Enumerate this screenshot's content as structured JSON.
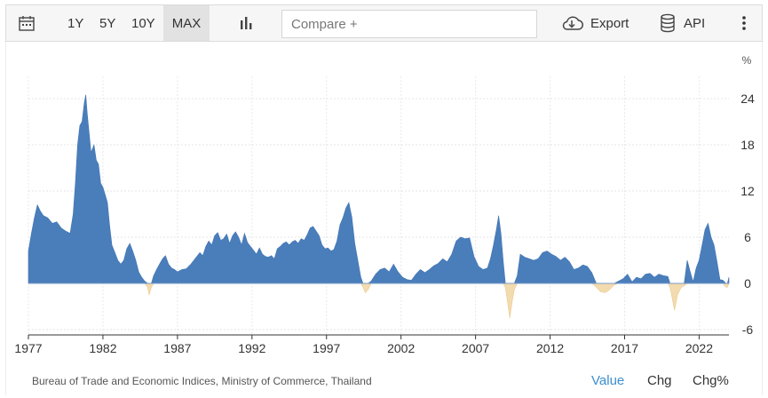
{
  "toolbar": {
    "ranges": [
      "1Y",
      "5Y",
      "10Y",
      "MAX"
    ],
    "active_range": "MAX",
    "compare_placeholder": "Compare +",
    "export_label": "Export",
    "api_label": "API",
    "icons": [
      "calendar-icon",
      "bar-chart-icon",
      "cloud-download-icon",
      "database-icon",
      "more-vertical-icon"
    ]
  },
  "chart_data": {
    "type": "area",
    "ylabel": "%",
    "y_ticks": [
      24,
      18,
      12,
      6,
      0,
      -6
    ],
    "ylim": [
      -7,
      27
    ],
    "x_ticks": [
      "1977",
      "1982",
      "1987",
      "1992",
      "1997",
      "2002",
      "2007",
      "2012",
      "2017",
      "2022"
    ],
    "xlim": [
      1977.0,
      2024.0
    ],
    "grid": true,
    "positive_color": "#4a7ebb",
    "negative_color": "#f3dbb0",
    "series": [
      {
        "points": [
          [
            1977.0,
            4.2
          ],
          [
            1977.2,
            6.5
          ],
          [
            1977.4,
            8.5
          ],
          [
            1977.6,
            10.2
          ],
          [
            1977.8,
            9.4
          ],
          [
            1978.0,
            8.8
          ],
          [
            1978.3,
            8.5
          ],
          [
            1978.6,
            7.8
          ],
          [
            1978.9,
            8.0
          ],
          [
            1979.2,
            7.2
          ],
          [
            1979.5,
            6.8
          ],
          [
            1979.8,
            6.5
          ],
          [
            1980.0,
            9.0
          ],
          [
            1980.15,
            13.0
          ],
          [
            1980.3,
            18.0
          ],
          [
            1980.45,
            20.5
          ],
          [
            1980.6,
            21.0
          ],
          [
            1980.75,
            23.5
          ],
          [
            1980.85,
            24.5
          ],
          [
            1980.95,
            22.0
          ],
          [
            1981.05,
            20.0
          ],
          [
            1981.2,
            17.0
          ],
          [
            1981.4,
            18.0
          ],
          [
            1981.55,
            16.0
          ],
          [
            1981.7,
            15.5
          ],
          [
            1981.85,
            13.0
          ],
          [
            1982.0,
            12.5
          ],
          [
            1982.15,
            11.5
          ],
          [
            1982.3,
            10.5
          ],
          [
            1982.45,
            7.5
          ],
          [
            1982.6,
            5.0
          ],
          [
            1982.8,
            4.0
          ],
          [
            1983.0,
            3.0
          ],
          [
            1983.2,
            2.5
          ],
          [
            1983.4,
            3.0
          ],
          [
            1983.6,
            4.5
          ],
          [
            1983.8,
            5.2
          ],
          [
            1984.0,
            4.2
          ],
          [
            1984.2,
            3.0
          ],
          [
            1984.4,
            1.5
          ],
          [
            1984.6,
            0.8
          ],
          [
            1984.8,
            0.3
          ],
          [
            1985.0,
            -0.5
          ],
          [
            1985.1,
            -1.5
          ],
          [
            1985.25,
            -0.5
          ],
          [
            1985.4,
            1.0
          ],
          [
            1985.6,
            1.8
          ],
          [
            1985.8,
            2.5
          ],
          [
            1986.0,
            3.2
          ],
          [
            1986.2,
            3.6
          ],
          [
            1986.4,
            2.5
          ],
          [
            1986.6,
            2.0
          ],
          [
            1986.8,
            1.8
          ],
          [
            1987.0,
            1.5
          ],
          [
            1987.3,
            1.8
          ],
          [
            1987.6,
            1.9
          ],
          [
            1987.9,
            2.5
          ],
          [
            1988.1,
            3.0
          ],
          [
            1988.3,
            3.5
          ],
          [
            1988.5,
            4.0
          ],
          [
            1988.7,
            3.6
          ],
          [
            1988.9,
            4.8
          ],
          [
            1989.1,
            5.5
          ],
          [
            1989.3,
            5.0
          ],
          [
            1989.5,
            6.2
          ],
          [
            1989.7,
            6.6
          ],
          [
            1989.9,
            5.6
          ],
          [
            1990.1,
            5.8
          ],
          [
            1990.3,
            6.4
          ],
          [
            1990.5,
            5.2
          ],
          [
            1990.7,
            6.2
          ],
          [
            1990.9,
            6.7
          ],
          [
            1991.1,
            6.0
          ],
          [
            1991.3,
            5.0
          ],
          [
            1991.5,
            6.5
          ],
          [
            1991.7,
            5.3
          ],
          [
            1991.9,
            4.8
          ],
          [
            1992.1,
            4.3
          ],
          [
            1992.3,
            3.8
          ],
          [
            1992.5,
            4.6
          ],
          [
            1992.7,
            3.8
          ],
          [
            1992.9,
            3.5
          ],
          [
            1993.1,
            3.4
          ],
          [
            1993.3,
            3.6
          ],
          [
            1993.5,
            3.2
          ],
          [
            1993.7,
            4.5
          ],
          [
            1993.9,
            4.8
          ],
          [
            1994.1,
            5.2
          ],
          [
            1994.3,
            5.4
          ],
          [
            1994.5,
            5.0
          ],
          [
            1994.7,
            5.4
          ],
          [
            1994.9,
            5.6
          ],
          [
            1995.1,
            5.2
          ],
          [
            1995.3,
            5.8
          ],
          [
            1995.5,
            5.6
          ],
          [
            1995.7,
            6.3
          ],
          [
            1995.9,
            7.2
          ],
          [
            1996.1,
            7.4
          ],
          [
            1996.3,
            6.8
          ],
          [
            1996.5,
            6.2
          ],
          [
            1996.7,
            5.0
          ],
          [
            1996.9,
            4.5
          ],
          [
            1997.1,
            4.6
          ],
          [
            1997.3,
            4.2
          ],
          [
            1997.5,
            4.4
          ],
          [
            1997.7,
            5.5
          ],
          [
            1997.9,
            7.6
          ],
          [
            1998.1,
            8.5
          ],
          [
            1998.3,
            9.8
          ],
          [
            1998.5,
            10.5
          ],
          [
            1998.7,
            8.6
          ],
          [
            1998.9,
            5.2
          ],
          [
            1999.1,
            3.0
          ],
          [
            1999.3,
            0.8
          ],
          [
            1999.45,
            -0.5
          ],
          [
            1999.6,
            -1.2
          ],
          [
            1999.8,
            -0.8
          ],
          [
            2000.0,
            0.3
          ],
          [
            2000.3,
            1.2
          ],
          [
            2000.6,
            1.8
          ],
          [
            2000.9,
            2.0
          ],
          [
            2001.2,
            1.5
          ],
          [
            2001.5,
            2.5
          ],
          [
            2001.8,
            1.5
          ],
          [
            2002.1,
            0.8
          ],
          [
            2002.4,
            0.5
          ],
          [
            2002.7,
            0.4
          ],
          [
            2003.0,
            1.2
          ],
          [
            2003.3,
            1.8
          ],
          [
            2003.6,
            1.4
          ],
          [
            2003.9,
            1.8
          ],
          [
            2004.2,
            2.3
          ],
          [
            2004.5,
            2.6
          ],
          [
            2004.8,
            3.2
          ],
          [
            2005.1,
            2.8
          ],
          [
            2005.4,
            3.8
          ],
          [
            2005.7,
            5.5
          ],
          [
            2006.0,
            6.0
          ],
          [
            2006.3,
            5.8
          ],
          [
            2006.6,
            5.9
          ],
          [
            2006.9,
            3.5
          ],
          [
            2007.2,
            2.2
          ],
          [
            2007.5,
            1.8
          ],
          [
            2007.8,
            2.0
          ],
          [
            2008.0,
            3.2
          ],
          [
            2008.2,
            5.0
          ],
          [
            2008.4,
            7.0
          ],
          [
            2008.55,
            8.8
          ],
          [
            2008.7,
            6.5
          ],
          [
            2008.85,
            3.0
          ],
          [
            2009.0,
            -0.5
          ],
          [
            2009.15,
            -2.5
          ],
          [
            2009.3,
            -4.5
          ],
          [
            2009.45,
            -2.5
          ],
          [
            2009.6,
            -0.8
          ],
          [
            2009.8,
            1.0
          ],
          [
            2010.0,
            3.8
          ],
          [
            2010.3,
            3.4
          ],
          [
            2010.6,
            3.2
          ],
          [
            2010.9,
            3.0
          ],
          [
            2011.2,
            3.2
          ],
          [
            2011.5,
            4.0
          ],
          [
            2011.8,
            4.2
          ],
          [
            2012.1,
            3.8
          ],
          [
            2012.4,
            3.5
          ],
          [
            2012.7,
            3.0
          ],
          [
            2013.0,
            3.4
          ],
          [
            2013.3,
            2.8
          ],
          [
            2013.6,
            1.8
          ],
          [
            2013.9,
            2.0
          ],
          [
            2014.2,
            2.4
          ],
          [
            2014.5,
            2.2
          ],
          [
            2014.8,
            1.4
          ],
          [
            2015.1,
            -0.5
          ],
          [
            2015.4,
            -1.1
          ],
          [
            2015.7,
            -1.2
          ],
          [
            2016.0,
            -0.8
          ],
          [
            2016.3,
            -0.2
          ],
          [
            2016.6,
            0.3
          ],
          [
            2016.9,
            0.6
          ],
          [
            2017.2,
            1.2
          ],
          [
            2017.5,
            0.2
          ],
          [
            2017.8,
            0.8
          ],
          [
            2018.1,
            0.6
          ],
          [
            2018.4,
            1.2
          ],
          [
            2018.7,
            1.3
          ],
          [
            2019.0,
            0.8
          ],
          [
            2019.3,
            1.2
          ],
          [
            2019.6,
            1.0
          ],
          [
            2019.9,
            0.9
          ],
          [
            2020.05,
            -0.5
          ],
          [
            2020.2,
            -2.0
          ],
          [
            2020.35,
            -3.5
          ],
          [
            2020.55,
            -1.5
          ],
          [
            2020.8,
            -0.5
          ],
          [
            2021.0,
            -0.3
          ],
          [
            2021.2,
            3.0
          ],
          [
            2021.4,
            1.5
          ],
          [
            2021.6,
            0.2
          ],
          [
            2021.8,
            2.0
          ],
          [
            2022.0,
            3.0
          ],
          [
            2022.2,
            5.0
          ],
          [
            2022.4,
            7.0
          ],
          [
            2022.6,
            7.8
          ],
          [
            2022.8,
            6.0
          ],
          [
            2023.0,
            5.0
          ],
          [
            2023.2,
            2.8
          ],
          [
            2023.4,
            0.5
          ],
          [
            2023.6,
            0.4
          ],
          [
            2023.8,
            -0.5
          ],
          [
            2023.9,
            -0.5
          ],
          [
            2024.0,
            0.8
          ]
        ]
      }
    ]
  },
  "footer": {
    "source": "Bureau of Trade and Economic Indices, Ministry of Commerce, Thailand",
    "views": [
      "Value",
      "Chg",
      "Chg%"
    ],
    "active_view": "Value"
  }
}
